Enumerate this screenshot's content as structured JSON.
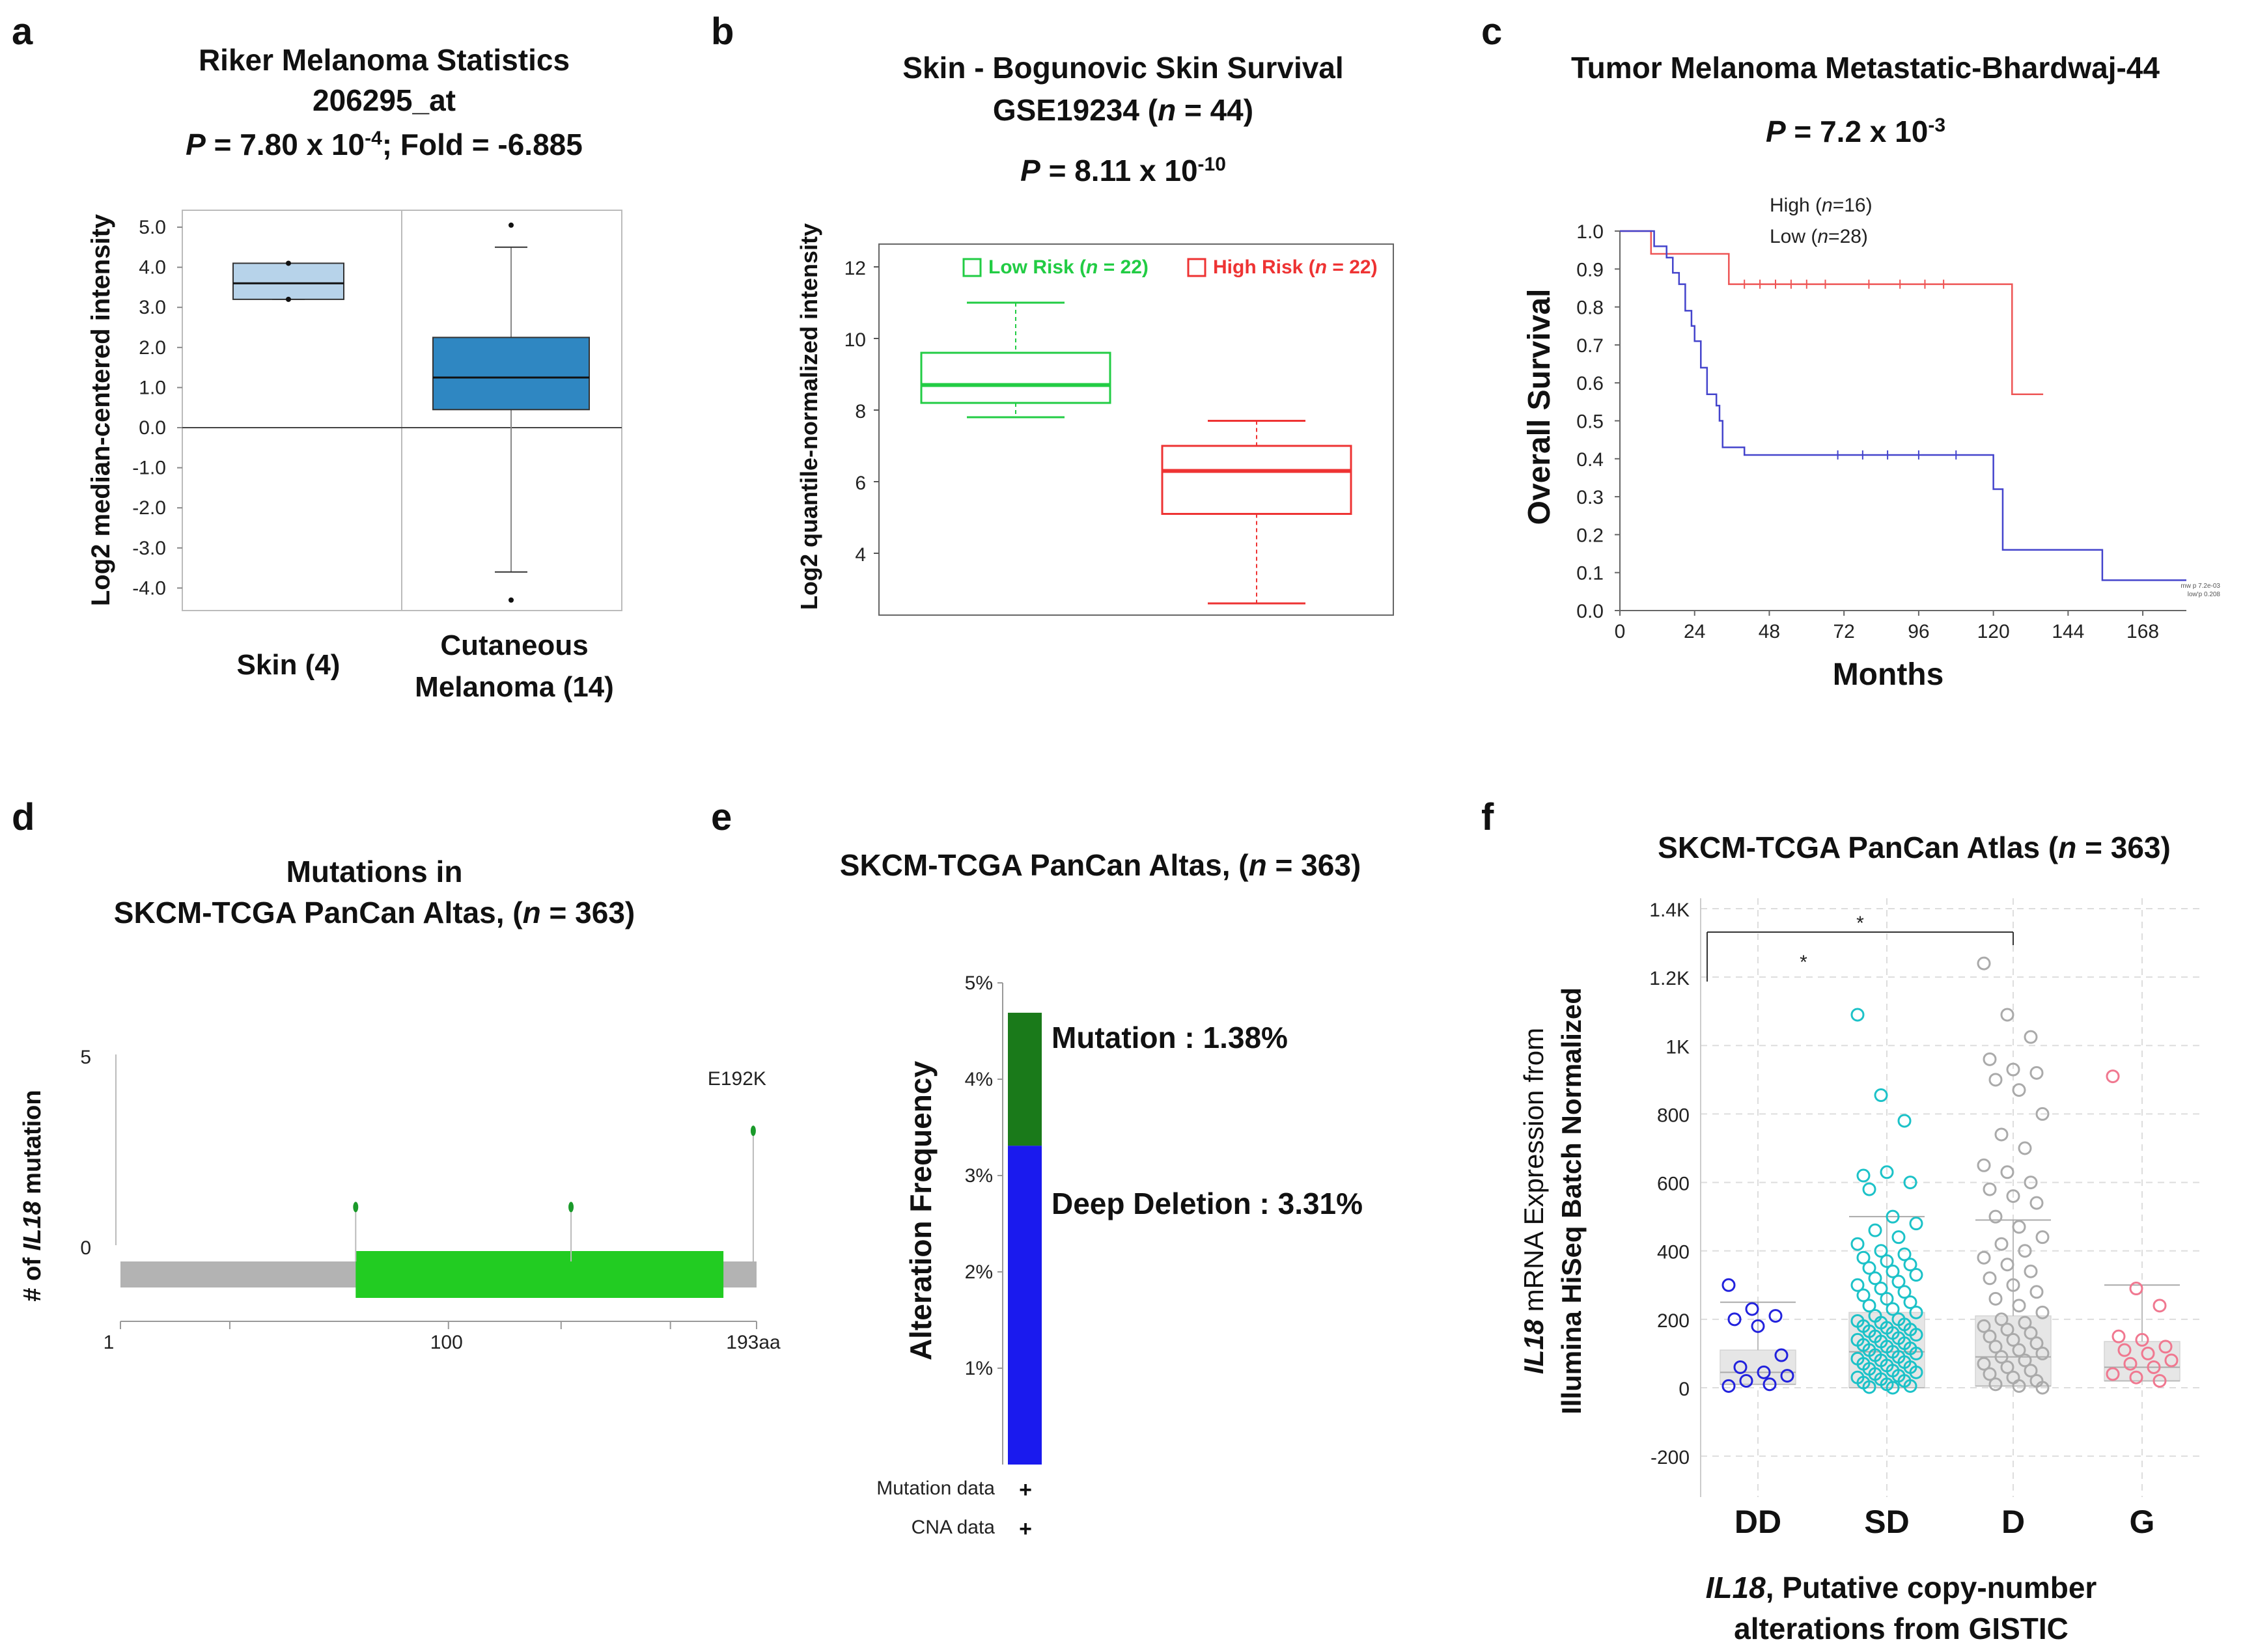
{
  "panels": {
    "a": {
      "letter": "a",
      "title": [
        "Riker Melanoma Statistics",
        "206295_at"
      ],
      "pline": {
        "p": "P",
        "eq": " = 7.80 x 10",
        "exp": "-4",
        "rest": "; Fold = -6.885"
      }
    },
    "b": {
      "letter": "b",
      "title": [
        "Skin - Bogunovic Skin Survival"
      ],
      "title2": {
        "pre": "GSE19234 (",
        "n": "n",
        "post": " = 44)"
      },
      "pline": {
        "p": "P",
        "eq": " = 8.11 x 10",
        "exp": "-10"
      }
    },
    "c": {
      "letter": "c",
      "title": [
        "Tumor Melanoma Metastatic-Bhardwaj-44"
      ],
      "pline": {
        "p": "P",
        "eq": " = 7.2 x 10",
        "exp": "-3"
      }
    },
    "d": {
      "letter": "d",
      "title": [
        "Mutations in"
      ],
      "title2": {
        "pre": "SKCM-TCGA PanCan Altas, (",
        "n": "n",
        "post": " = 363)"
      }
    },
    "e": {
      "letter": "e",
      "title2": {
        "pre": "SKCM-TCGA PanCan Altas, (",
        "n": "n",
        "post": " = 363)"
      }
    },
    "f": {
      "letter": "f",
      "title2": {
        "pre": "SKCM-TCGA PanCan Atlas (",
        "n": "n",
        "post": " = 363)"
      }
    }
  },
  "chart_data": [
    {
      "id": "a",
      "type": "box",
      "ylabel": "Log2 median-centered intensity",
      "categories": [
        "Skin (4)",
        "Cutaneous Melanoma (14)"
      ],
      "yticks": [
        "5.0",
        "4.0",
        "3.0",
        "2.0",
        "1.0",
        "0.0",
        "-1.0",
        "-2.0",
        "-3.0",
        "-4.0"
      ],
      "ylim": [
        -4.5,
        5.3
      ],
      "boxes": [
        {
          "name": "Skin (4)",
          "min": 3.2,
          "q1": 3.2,
          "median": 3.6,
          "q3": 4.1,
          "max": 4.1,
          "outliers": [],
          "color": "#b7d3ea"
        },
        {
          "name": "Cutaneous Melanoma (14)",
          "min": -3.6,
          "q1": 0.45,
          "median": 1.25,
          "q3": 2.25,
          "max": 4.5,
          "outliers": [
            5.05,
            -4.3
          ],
          "color": "#2f87c2"
        }
      ]
    },
    {
      "id": "b",
      "type": "box",
      "ylabel": "Log2 quantile-normalized intensity",
      "yticks": [
        "12",
        "10",
        "8",
        "6",
        "4"
      ],
      "ylim": [
        2.3,
        12.6
      ],
      "legend": [
        {
          "label": "Low Risk",
          "n": "n",
          "suffix": " = 22)",
          "prefix": "(",
          "color": "#22cc44"
        },
        {
          "label": "High Risk",
          "n": "n",
          "suffix": " = 22)",
          "prefix": "(",
          "color": "#ee3333"
        }
      ],
      "boxes": [
        {
          "name": "Low Risk",
          "min": 7.8,
          "q1": 8.2,
          "median": 8.7,
          "q3": 9.6,
          "max": 11.0,
          "color": "#22cc44"
        },
        {
          "name": "High Risk",
          "min": 2.6,
          "q1": 5.1,
          "median": 6.3,
          "q3": 7.0,
          "max": 7.7,
          "color": "#ee3333"
        }
      ]
    },
    {
      "id": "c",
      "type": "line",
      "ylabel": "Overall Survival",
      "xlabel": "Months",
      "xticks": [
        "0",
        "24",
        "48",
        "72",
        "96",
        "120",
        "144",
        "168"
      ],
      "yticks": [
        "1.0",
        "0.9",
        "0.8",
        "0.7",
        "0.6",
        "0.5",
        "0.4",
        "0.3",
        "0.2",
        "0.1",
        "0.0"
      ],
      "xlim": [
        0,
        182
      ],
      "ylim": [
        0,
        1
      ],
      "legend": [
        {
          "label": "High (",
          "n": "n",
          "post": "=16)"
        },
        {
          "label": "Low (",
          "n": "n",
          "post": "=28)"
        }
      ],
      "footnote": [
        "mw p 7.2e-03",
        "low'p 0.208"
      ],
      "series": [
        {
          "name": "High",
          "color": "#ee5555",
          "steps": [
            [
              0,
              1.0
            ],
            [
              10,
              1.0
            ],
            [
              10,
              0.94
            ],
            [
              35,
              0.94
            ],
            [
              35,
              0.86
            ],
            [
              126,
              0.86
            ],
            [
              126,
              0.57
            ],
            [
              136,
              0.57
            ]
          ]
        },
        {
          "name": "Low",
          "color": "#4444cc",
          "steps": [
            [
              0,
              1.0
            ],
            [
              11,
              1.0
            ],
            [
              11,
              0.96
            ],
            [
              15,
              0.96
            ],
            [
              15,
              0.93
            ],
            [
              17,
              0.93
            ],
            [
              17,
              0.89
            ],
            [
              19,
              0.89
            ],
            [
              19,
              0.86
            ],
            [
              21,
              0.86
            ],
            [
              21,
              0.79
            ],
            [
              23,
              0.79
            ],
            [
              23,
              0.75
            ],
            [
              24,
              0.75
            ],
            [
              24,
              0.71
            ],
            [
              26,
              0.71
            ],
            [
              26,
              0.64
            ],
            [
              28,
              0.64
            ],
            [
              28,
              0.57
            ],
            [
              31,
              0.57
            ],
            [
              31,
              0.54
            ],
            [
              32,
              0.54
            ],
            [
              32,
              0.5
            ],
            [
              33,
              0.5
            ],
            [
              33,
              0.43
            ],
            [
              40,
              0.43
            ],
            [
              40,
              0.41
            ],
            [
              120,
              0.41
            ],
            [
              120,
              0.32
            ],
            [
              123,
              0.32
            ],
            [
              123,
              0.16
            ],
            [
              155,
              0.16
            ],
            [
              155,
              0.08
            ],
            [
              182,
              0.08
            ]
          ]
        }
      ]
    },
    {
      "id": "d",
      "type": "lollipop",
      "ylabel_pre": "# of ",
      "ylabel_gene": "IL18",
      "ylabel_post": " mutation",
      "yticks": [
        "5",
        "0"
      ],
      "xticks": [
        "1",
        "100",
        "193aa"
      ],
      "xlim": [
        1,
        193
      ],
      "annotation": "E192K",
      "mutations": [
        {
          "pos": 72,
          "count": 1
        },
        {
          "pos": 137,
          "count": 1
        },
        {
          "pos": 192,
          "count": 3
        }
      ],
      "domain": {
        "start": 72,
        "end": 183,
        "color": "#22cc22"
      }
    },
    {
      "id": "e",
      "type": "bar",
      "ylabel": "Alteration Frequency",
      "yticks": [
        "5%",
        "4%",
        "3%",
        "2%",
        "1%"
      ],
      "ylim": [
        0,
        5
      ],
      "stack": [
        {
          "name": "Deep Deletion",
          "value": 3.31,
          "label": "Deep Deletion : 3.31%",
          "color": "#1a1aee"
        },
        {
          "name": "Mutation",
          "value": 1.38,
          "label": "Mutation : 1.38%",
          "color": "#1a7a1a"
        }
      ],
      "rows": [
        {
          "label": "Mutation data",
          "mark": "+"
        },
        {
          "label": "CNA data",
          "mark": "+"
        }
      ]
    },
    {
      "id": "f",
      "type": "scatter",
      "ylabel_gene": "IL18",
      "ylabel_rest": " mRNA Expression from",
      "ylabel2": "Illumina HiSeq Batch Normalized",
      "xlabel_gene": "IL18",
      "xlabel_rest": ", Putative copy-number",
      "xlabel2": "alterations from GISTIC",
      "categories": [
        "DD",
        "SD",
        "D",
        "G"
      ],
      "yticks": [
        "1.4K",
        "1.2K",
        "1K",
        "800",
        "600",
        "400",
        "200",
        "0",
        "-200"
      ],
      "ylim": [
        -250,
        1420
      ],
      "sig": [
        "*",
        "*"
      ],
      "groups": [
        {
          "name": "DD",
          "color": "#2222dd",
          "q1": 10,
          "median": 45,
          "q3": 110,
          "whisker_hi": 250,
          "points": [
            300,
            230,
            210,
            200,
            180,
            95,
            60,
            45,
            35,
            20,
            10,
            5
          ]
        },
        {
          "name": "SD",
          "color": "#1cc2c8",
          "q1": 0,
          "median": 105,
          "q3": 220,
          "whisker_hi": 500,
          "points": [
            1090,
            855,
            780,
            620,
            630,
            600,
            580,
            500,
            480,
            460,
            440,
            420,
            400,
            390,
            380,
            370,
            360,
            350,
            340,
            330,
            320,
            310,
            300,
            290,
            280,
            270,
            260,
            250,
            240,
            230,
            220,
            210,
            200,
            195,
            190,
            185,
            180,
            175,
            170,
            165,
            160,
            155,
            150,
            145,
            140,
            135,
            130,
            125,
            120,
            115,
            110,
            105,
            100,
            95,
            90,
            85,
            80,
            75,
            70,
            65,
            60,
            55,
            50,
            45,
            40,
            35,
            30,
            25,
            20,
            15,
            10,
            5,
            2,
            0
          ]
        },
        {
          "name": "D",
          "color": "#aaaaaa",
          "q1": 5,
          "median": 90,
          "q3": 210,
          "whisker_hi": 490,
          "points": [
            1240,
            1090,
            1025,
            960,
            930,
            920,
            900,
            870,
            800,
            740,
            700,
            650,
            630,
            600,
            580,
            560,
            540,
            500,
            470,
            440,
            420,
            400,
            380,
            360,
            340,
            320,
            300,
            280,
            260,
            240,
            220,
            200,
            190,
            180,
            170,
            160,
            150,
            140,
            130,
            120,
            110,
            100,
            90,
            80,
            70,
            60,
            50,
            40,
            30,
            20,
            10,
            5,
            0
          ]
        },
        {
          "name": "G",
          "color": "#f07890",
          "q1": 20,
          "median": 60,
          "q3": 135,
          "whisker_hi": 300,
          "points": [
            910,
            290,
            240,
            150,
            140,
            120,
            110,
            100,
            80,
            70,
            60,
            40,
            30,
            20
          ]
        }
      ]
    }
  ]
}
